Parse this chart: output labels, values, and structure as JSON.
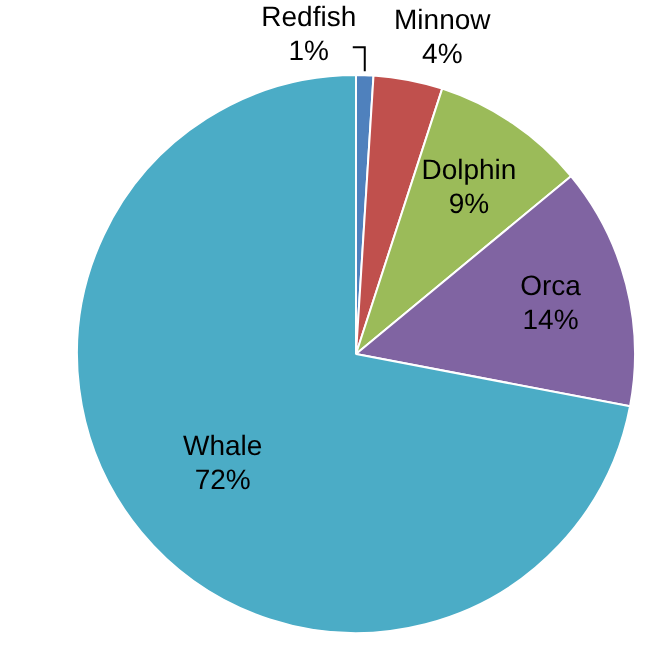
{
  "chart_data": {
    "type": "pie",
    "categories": [
      "Redfish",
      "Minnow",
      "Dolphin",
      "Orca",
      "Whale"
    ],
    "values": [
      1,
      4,
      9,
      14,
      72
    ],
    "colors": [
      "#4f81bd",
      "#c0504d",
      "#9bbb59",
      "#8064a2",
      "#4bacc6"
    ],
    "legend": false,
    "value_labels": [
      "1%",
      "4%",
      "9%",
      "14%",
      "72%"
    ]
  }
}
